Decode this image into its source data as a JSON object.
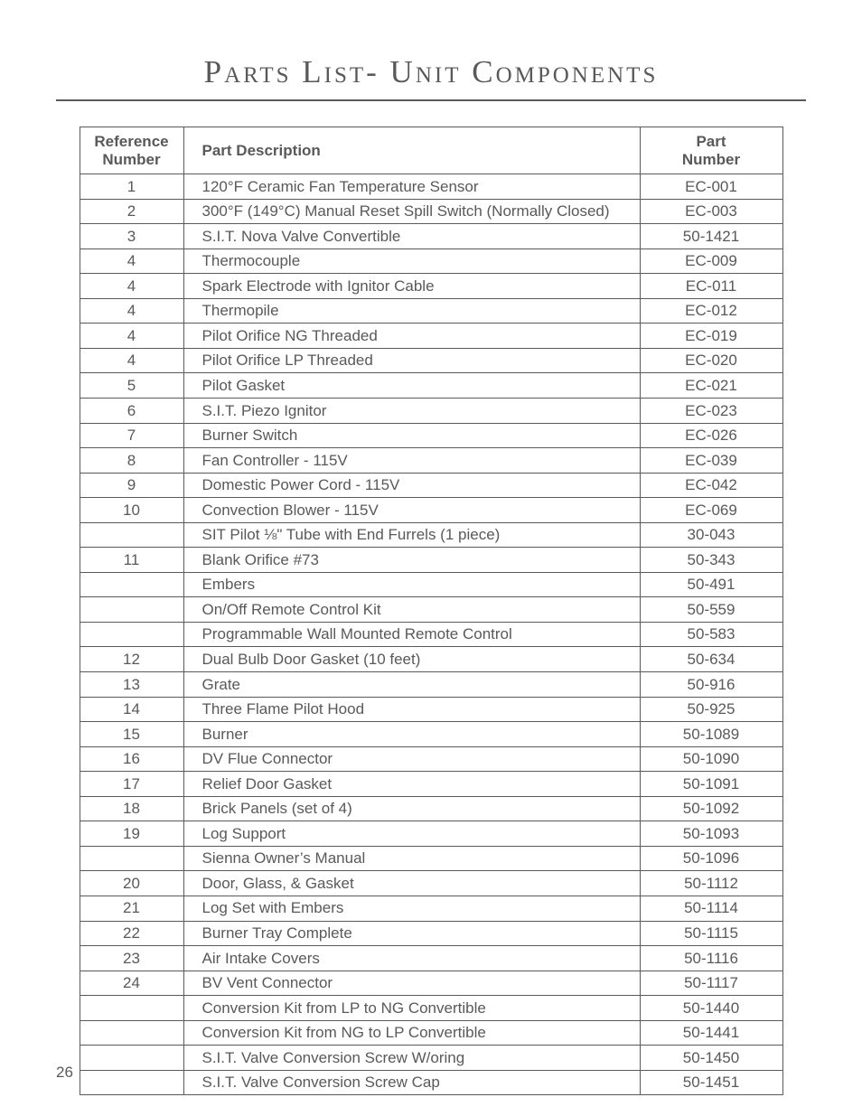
{
  "title": "Parts List- Unit Components",
  "page_number": "26",
  "table": {
    "columns": {
      "ref_label_line1": "Reference",
      "ref_label_line2": "Number",
      "desc_label": "Part Description",
      "part_label_line1": "Part",
      "part_label_line2": "Number"
    },
    "rows": [
      {
        "ref": "1",
        "desc": "120°F Ceramic Fan Temperature Sensor",
        "part": "EC-001"
      },
      {
        "ref": "2",
        "desc": "300°F (149°C) Manual Reset Spill Switch (Normally Closed)",
        "part": "EC-003"
      },
      {
        "ref": "3",
        "desc": "S.I.T. Nova Valve Convertible",
        "part": "50-1421"
      },
      {
        "ref": "4",
        "desc": "Thermocouple",
        "part": "EC-009"
      },
      {
        "ref": "4",
        "desc": "Spark Electrode with Ignitor Cable",
        "part": "EC-011"
      },
      {
        "ref": "4",
        "desc": "Thermopile",
        "part": "EC-012"
      },
      {
        "ref": "4",
        "desc": "Pilot Orifice NG Threaded",
        "part": "EC-019"
      },
      {
        "ref": "4",
        "desc": "Pilot Orifice LP Threaded",
        "part": "EC-020"
      },
      {
        "ref": "5",
        "desc": "Pilot Gasket",
        "part": "EC-021"
      },
      {
        "ref": "6",
        "desc": "S.I.T. Piezo Ignitor",
        "part": "EC-023"
      },
      {
        "ref": "7",
        "desc": "Burner Switch",
        "part": "EC-026"
      },
      {
        "ref": "8",
        "desc": "Fan Controller - 115V",
        "part": "EC-039"
      },
      {
        "ref": "9",
        "desc": "Domestic Power Cord - 115V",
        "part": "EC-042"
      },
      {
        "ref": "10",
        "desc": "Convection Blower - 115V",
        "part": "EC-069"
      },
      {
        "ref": "",
        "desc": "SIT Pilot ⅛\" Tube with End Furrels (1 piece)",
        "part": "30-043"
      },
      {
        "ref": "11",
        "desc": "Blank Orifice #73",
        "part": "50-343"
      },
      {
        "ref": "",
        "desc": "Embers",
        "part": "50-491"
      },
      {
        "ref": "",
        "desc": "On/Off Remote Control Kit",
        "part": "50-559"
      },
      {
        "ref": "",
        "desc": "Programmable Wall Mounted Remote Control",
        "part": "50-583"
      },
      {
        "ref": "12",
        "desc": "Dual Bulb Door Gasket (10 feet)",
        "part": "50-634"
      },
      {
        "ref": "13",
        "desc": "Grate",
        "part": "50-916"
      },
      {
        "ref": "14",
        "desc": "Three Flame Pilot Hood",
        "part": "50-925"
      },
      {
        "ref": "15",
        "desc": "Burner",
        "part": "50-1089"
      },
      {
        "ref": "16",
        "desc": "DV Flue Connector",
        "part": "50-1090"
      },
      {
        "ref": "17",
        "desc": "Relief Door Gasket",
        "part": "50-1091"
      },
      {
        "ref": "18",
        "desc": "Brick Panels (set of 4)",
        "part": "50-1092"
      },
      {
        "ref": "19",
        "desc": "Log Support",
        "part": "50-1093"
      },
      {
        "ref": "",
        "desc": "Sienna Owner’s Manual",
        "part": "50-1096"
      },
      {
        "ref": "20",
        "desc": "Door, Glass, & Gasket",
        "part": "50-1112"
      },
      {
        "ref": "21",
        "desc": "Log Set with Embers",
        "part": "50-1114"
      },
      {
        "ref": "22",
        "desc": "Burner Tray Complete",
        "part": "50-1115"
      },
      {
        "ref": "23",
        "desc": "Air Intake Covers",
        "part": "50-1116"
      },
      {
        "ref": "24",
        "desc": "BV Vent Connector",
        "part": "50-1117"
      },
      {
        "ref": "",
        "desc": "Conversion Kit from LP to NG Convertible",
        "part": "50-1440"
      },
      {
        "ref": "",
        "desc": "Conversion Kit from NG to LP Convertible",
        "part": "50-1441"
      },
      {
        "ref": "",
        "desc": "S.I.T. Valve Conversion Screw W/oring",
        "part": "50-1450"
      },
      {
        "ref": "",
        "desc": "S.I.T. Valve Conversion Screw Cap",
        "part": "50-1451"
      }
    ]
  }
}
